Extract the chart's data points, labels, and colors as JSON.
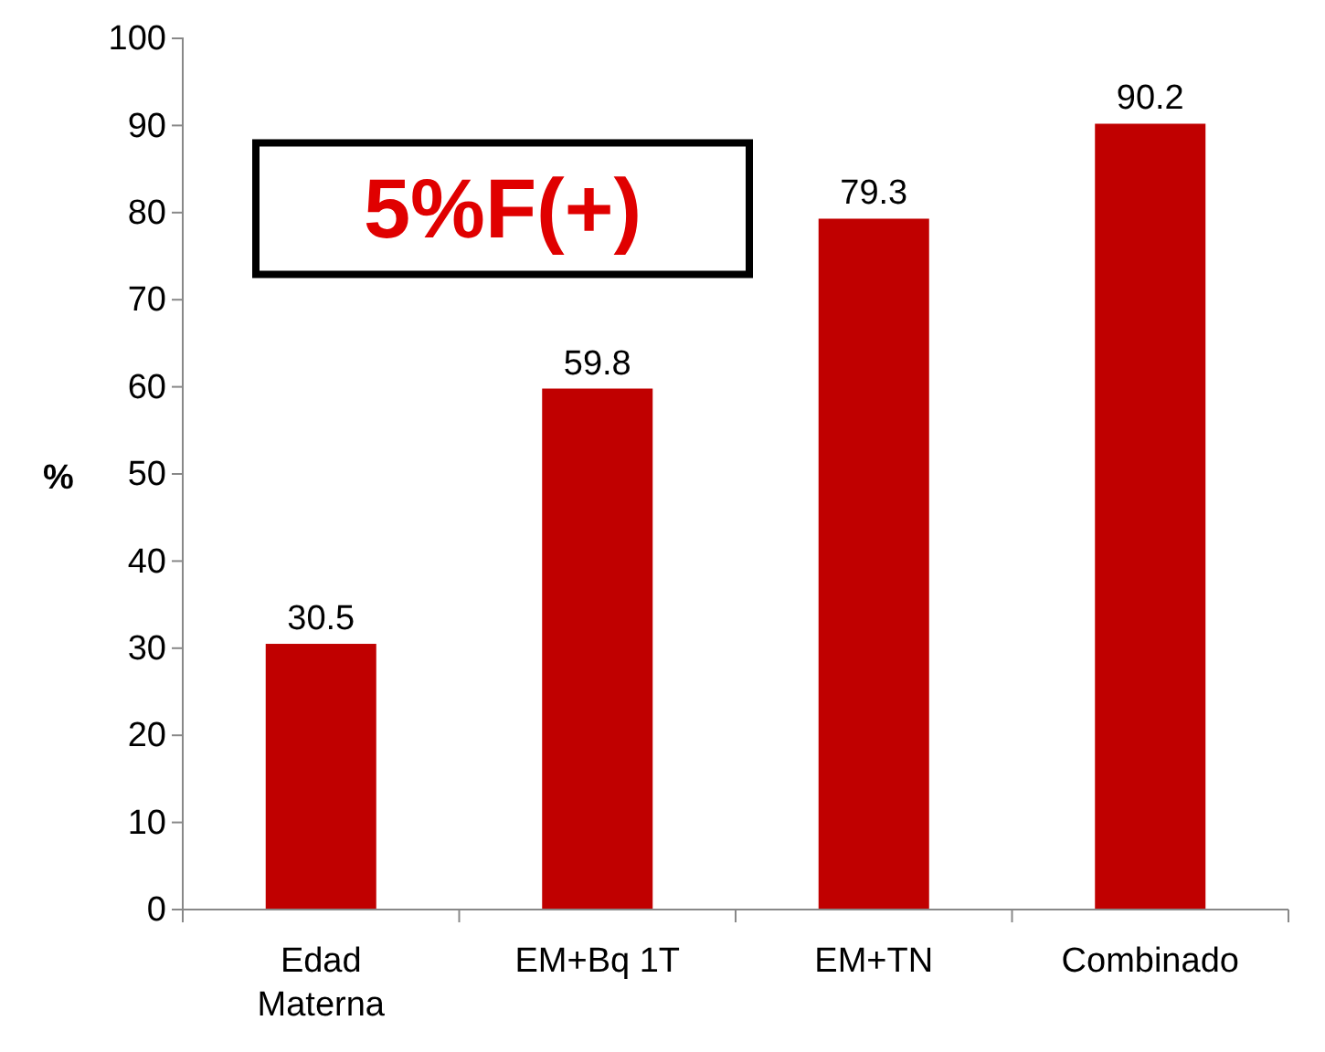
{
  "chart_data": {
    "type": "bar",
    "ylabel": "%",
    "categories": [
      "Edad Materna",
      "EM+Bq 1T",
      "EM+TN",
      "Combinado"
    ],
    "values": [
      30.5,
      59.8,
      79.3,
      90.2
    ],
    "color": "#c00000",
    "ylim": [
      0,
      100
    ],
    "yticks": [
      0,
      10,
      20,
      30,
      40,
      50,
      60,
      70,
      80,
      90,
      100
    ],
    "data_labels": true,
    "grid": false,
    "annotations": [
      "5%F(+)"
    ]
  }
}
